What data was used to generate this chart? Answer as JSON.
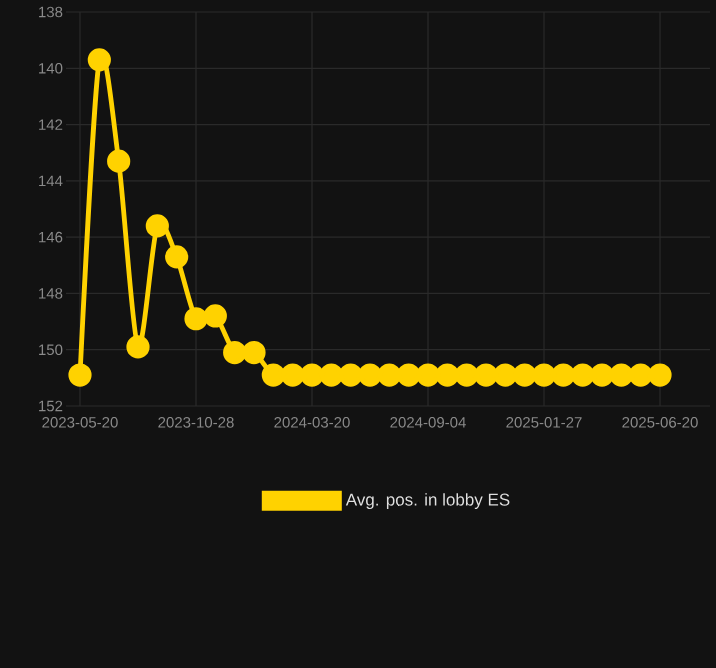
{
  "chart_data": {
    "type": "line",
    "categories": [
      "2023-05-20",
      null,
      null,
      null,
      null,
      null,
      "2023-10-28",
      null,
      null,
      null,
      null,
      null,
      "2024-03-20",
      null,
      null,
      null,
      null,
      null,
      "2024-09-04",
      null,
      null,
      null,
      null,
      null,
      "2025-01-27",
      null,
      null,
      null,
      null,
      null,
      "2025-06-20"
    ],
    "series": [
      {
        "name": "Avg. pos. in lobby ES",
        "color": "#ffd200",
        "values": [
          150.9,
          139.7,
          143.3,
          149.9,
          145.6,
          146.7,
          148.9,
          148.8,
          150.1,
          150.1,
          150.9,
          150.9,
          150.9,
          150.9,
          150.9,
          150.9,
          150.9,
          150.9,
          150.9,
          150.9,
          150.9,
          150.9,
          150.9,
          150.9,
          150.9,
          150.9,
          150.9,
          150.9,
          150.9,
          150.9,
          150.9
        ]
      }
    ],
    "ylim": [
      152,
      138
    ],
    "yticks": [
      138,
      140,
      142,
      144,
      146,
      148,
      150,
      152
    ],
    "grid": true,
    "legend": "bottom",
    "marker": "circle",
    "line_style": "solid"
  }
}
